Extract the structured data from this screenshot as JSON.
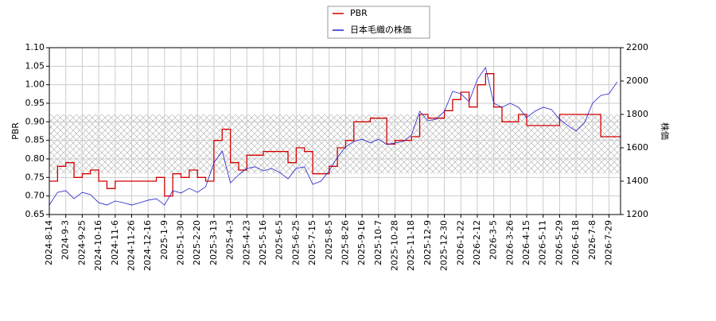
{
  "chart_data": {
    "type": "line",
    "legend_labels_order": null,
    "categories": [
      "2024-8-14",
      null,
      "2024-9-3",
      null,
      "2024-9-25",
      null,
      "2024-10-16",
      null,
      "2024-11-6",
      null,
      "2024-11-26",
      null,
      "2024-12-16",
      null,
      "2025-1-9",
      null,
      "2025-1-30",
      null,
      "2025-2-20",
      null,
      "2025-3-13",
      null,
      "2025-4-3",
      null,
      "2025-4-23",
      null,
      "2025-5-16",
      null,
      "2025-6-5",
      null,
      "2025-6-25",
      null,
      "2025-7-15",
      null,
      "2025-8-5",
      null,
      "2025-8-26",
      null,
      "2025-9-16",
      null,
      "2025-10-7",
      null,
      "2025-10-28",
      null,
      "2025-11-18",
      null,
      "2025-12-9",
      null,
      "2025-12-30",
      null,
      "2026-1-22",
      null,
      "2026-2-12",
      null,
      "2026-3-5",
      null,
      "2026-3-26",
      null,
      "2026-4-15",
      null,
      "2026-5-11",
      null,
      "2026-5-29",
      null,
      "2026-6-18",
      null,
      "2026-7-8",
      null,
      "2026-7-29",
      null
    ],
    "series": [
      {
        "name": "PBR",
        "color": "#d40000",
        "step": true,
        "axis": "y",
        "values": [
          0.74,
          0.78,
          0.79,
          0.75,
          0.76,
          0.77,
          0.74,
          0.72,
          0.74,
          0.74,
          0.74,
          0.74,
          0.74,
          0.75,
          0.7,
          0.76,
          0.75,
          0.77,
          0.75,
          0.74,
          0.85,
          0.88,
          0.79,
          0.77,
          0.81,
          0.81,
          0.82,
          0.82,
          0.82,
          0.79,
          0.83,
          0.82,
          0.76,
          0.76,
          0.78,
          0.83,
          0.85,
          0.9,
          0.9,
          0.91,
          0.91,
          0.84,
          0.85,
          0.85,
          0.86,
          0.92,
          0.91,
          0.91,
          0.93,
          0.96,
          0.98,
          0.94,
          1.0,
          1.03,
          0.94,
          0.9,
          0.9,
          0.92,
          0.89,
          0.89,
          0.89,
          0.89,
          0.92,
          0.92,
          0.92,
          0.92,
          0.92,
          0.86,
          0.86,
          0.86
        ]
      },
      {
        "name": "日本毛織の株価",
        "color": "#2222cc",
        "step": false,
        "axis": "y2",
        "values": [
          1257,
          1333,
          1343,
          1295,
          1333,
          1319,
          1271,
          1257,
          1281,
          1271,
          1257,
          1271,
          1286,
          1295,
          1257,
          1343,
          1329,
          1357,
          1333,
          1367,
          1510,
          1581,
          1390,
          1438,
          1476,
          1486,
          1462,
          1476,
          1452,
          1414,
          1476,
          1486,
          1381,
          1400,
          1462,
          1543,
          1605,
          1638,
          1652,
          1629,
          1652,
          1619,
          1629,
          1638,
          1676,
          1819,
          1762,
          1771,
          1819,
          1938,
          1924,
          1876,
          2010,
          2081,
          1867,
          1843,
          1867,
          1843,
          1781,
          1819,
          1843,
          1829,
          1771,
          1733,
          1700,
          1748,
          1867,
          1914,
          1924,
          1995
        ]
      }
    ],
    "ylabel": "PBR",
    "y2label": "株価",
    "ylim": [
      0.65,
      1.1
    ],
    "yticks": [
      0.65,
      {
        "value": 0.7,
        "label": "0.70"
      },
      0.75,
      {
        "value": 0.8,
        "label": "0.80"
      },
      0.85,
      {
        "value": 0.9,
        "label": "0.90"
      },
      0.95,
      {
        "value": 1.0,
        "label": "1.00"
      },
      1.05,
      {
        "value": 1.1,
        "label": "1.10"
      }
    ],
    "y2lim": [
      1200,
      2200
    ],
    "y2ticks": [
      1200,
      1400,
      1600,
      1800,
      2000,
      2200
    ],
    "shaded_range": [
      0.76,
      0.92
    ],
    "grid": true,
    "legend": "upper center"
  }
}
